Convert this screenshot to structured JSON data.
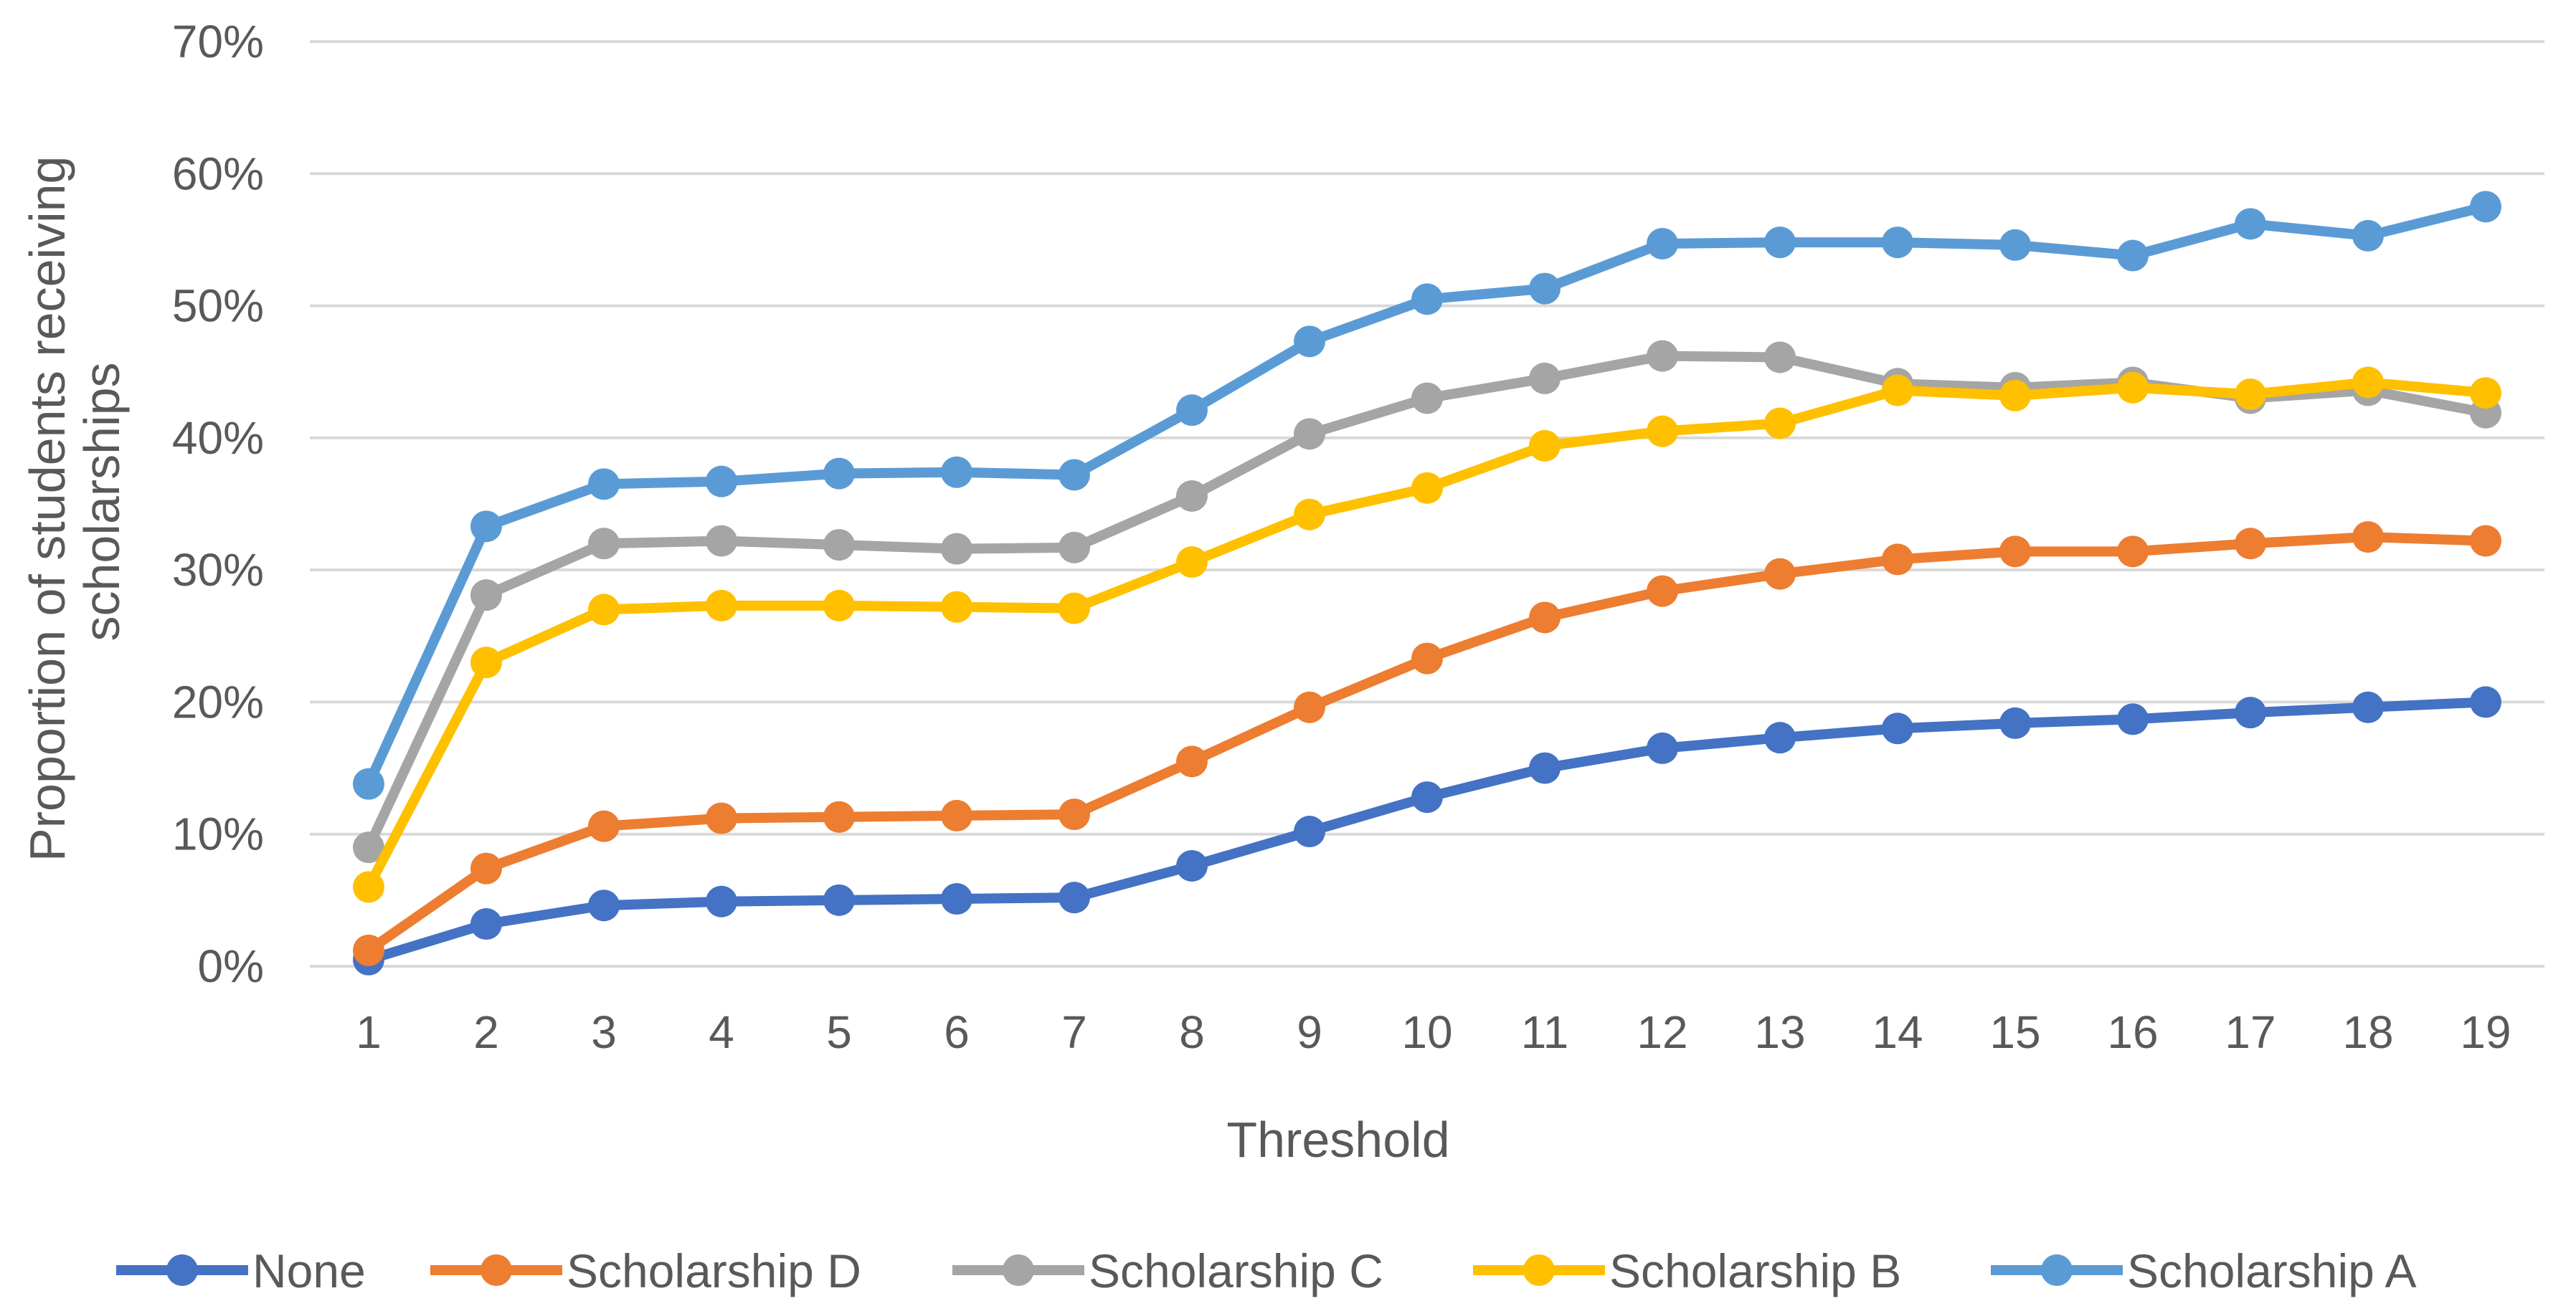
{
  "chart_data": {
    "type": "line",
    "title": "",
    "xlabel": "Threshold",
    "ylabel": "Proportion of students receiving scholarships",
    "ylabel_lines": [
      "Proportion of students receiving",
      "scholarships"
    ],
    "x": [
      1,
      2,
      3,
      4,
      5,
      6,
      7,
      8,
      9,
      10,
      11,
      12,
      13,
      14,
      15,
      16,
      17,
      18,
      19
    ],
    "ylim": [
      0,
      70
    ],
    "yticks": [
      0,
      10,
      20,
      30,
      40,
      50,
      60,
      70
    ],
    "ytick_labels": [
      "0%",
      "10%",
      "20%",
      "30%",
      "40%",
      "50%",
      "60%",
      "70%"
    ],
    "grid": true,
    "legend_position": "bottom",
    "series": [
      {
        "name": "None",
        "color": "#4472c4",
        "values": [
          0.5,
          3.2,
          4.6,
          4.9,
          5.0,
          5.1,
          5.2,
          7.6,
          10.2,
          12.8,
          15.0,
          16.5,
          17.3,
          18.0,
          18.4,
          18.7,
          19.2,
          19.6,
          20.0
        ]
      },
      {
        "name": "Scholarship D",
        "color": "#ed7d31",
        "values": [
          1.2,
          7.4,
          10.6,
          11.2,
          11.3,
          11.4,
          11.5,
          15.5,
          19.6,
          23.3,
          26.4,
          28.4,
          29.7,
          30.8,
          31.4,
          31.4,
          32.0,
          32.5,
          32.2
        ]
      },
      {
        "name": "Scholarship C",
        "color": "#a5a5a5",
        "values": [
          9.0,
          28.1,
          32.0,
          32.2,
          31.9,
          31.6,
          31.7,
          35.6,
          40.3,
          43.0,
          44.5,
          46.2,
          46.1,
          44.1,
          43.8,
          44.2,
          43.0,
          43.6,
          41.9
        ]
      },
      {
        "name": "Scholarship B",
        "color": "#ffc000",
        "values": [
          6.0,
          23.0,
          27.0,
          27.3,
          27.3,
          27.2,
          27.1,
          30.6,
          34.2,
          36.2,
          39.4,
          40.5,
          41.1,
          43.6,
          43.2,
          43.8,
          43.3,
          44.2,
          43.4
        ]
      },
      {
        "name": "Scholarship A",
        "color": "#5b9bd5",
        "values": [
          13.8,
          33.3,
          36.5,
          36.7,
          37.3,
          37.4,
          37.2,
          42.1,
          47.3,
          50.5,
          51.3,
          54.7,
          54.8,
          54.8,
          54.6,
          53.8,
          56.2,
          55.3,
          57.5
        ]
      }
    ]
  }
}
